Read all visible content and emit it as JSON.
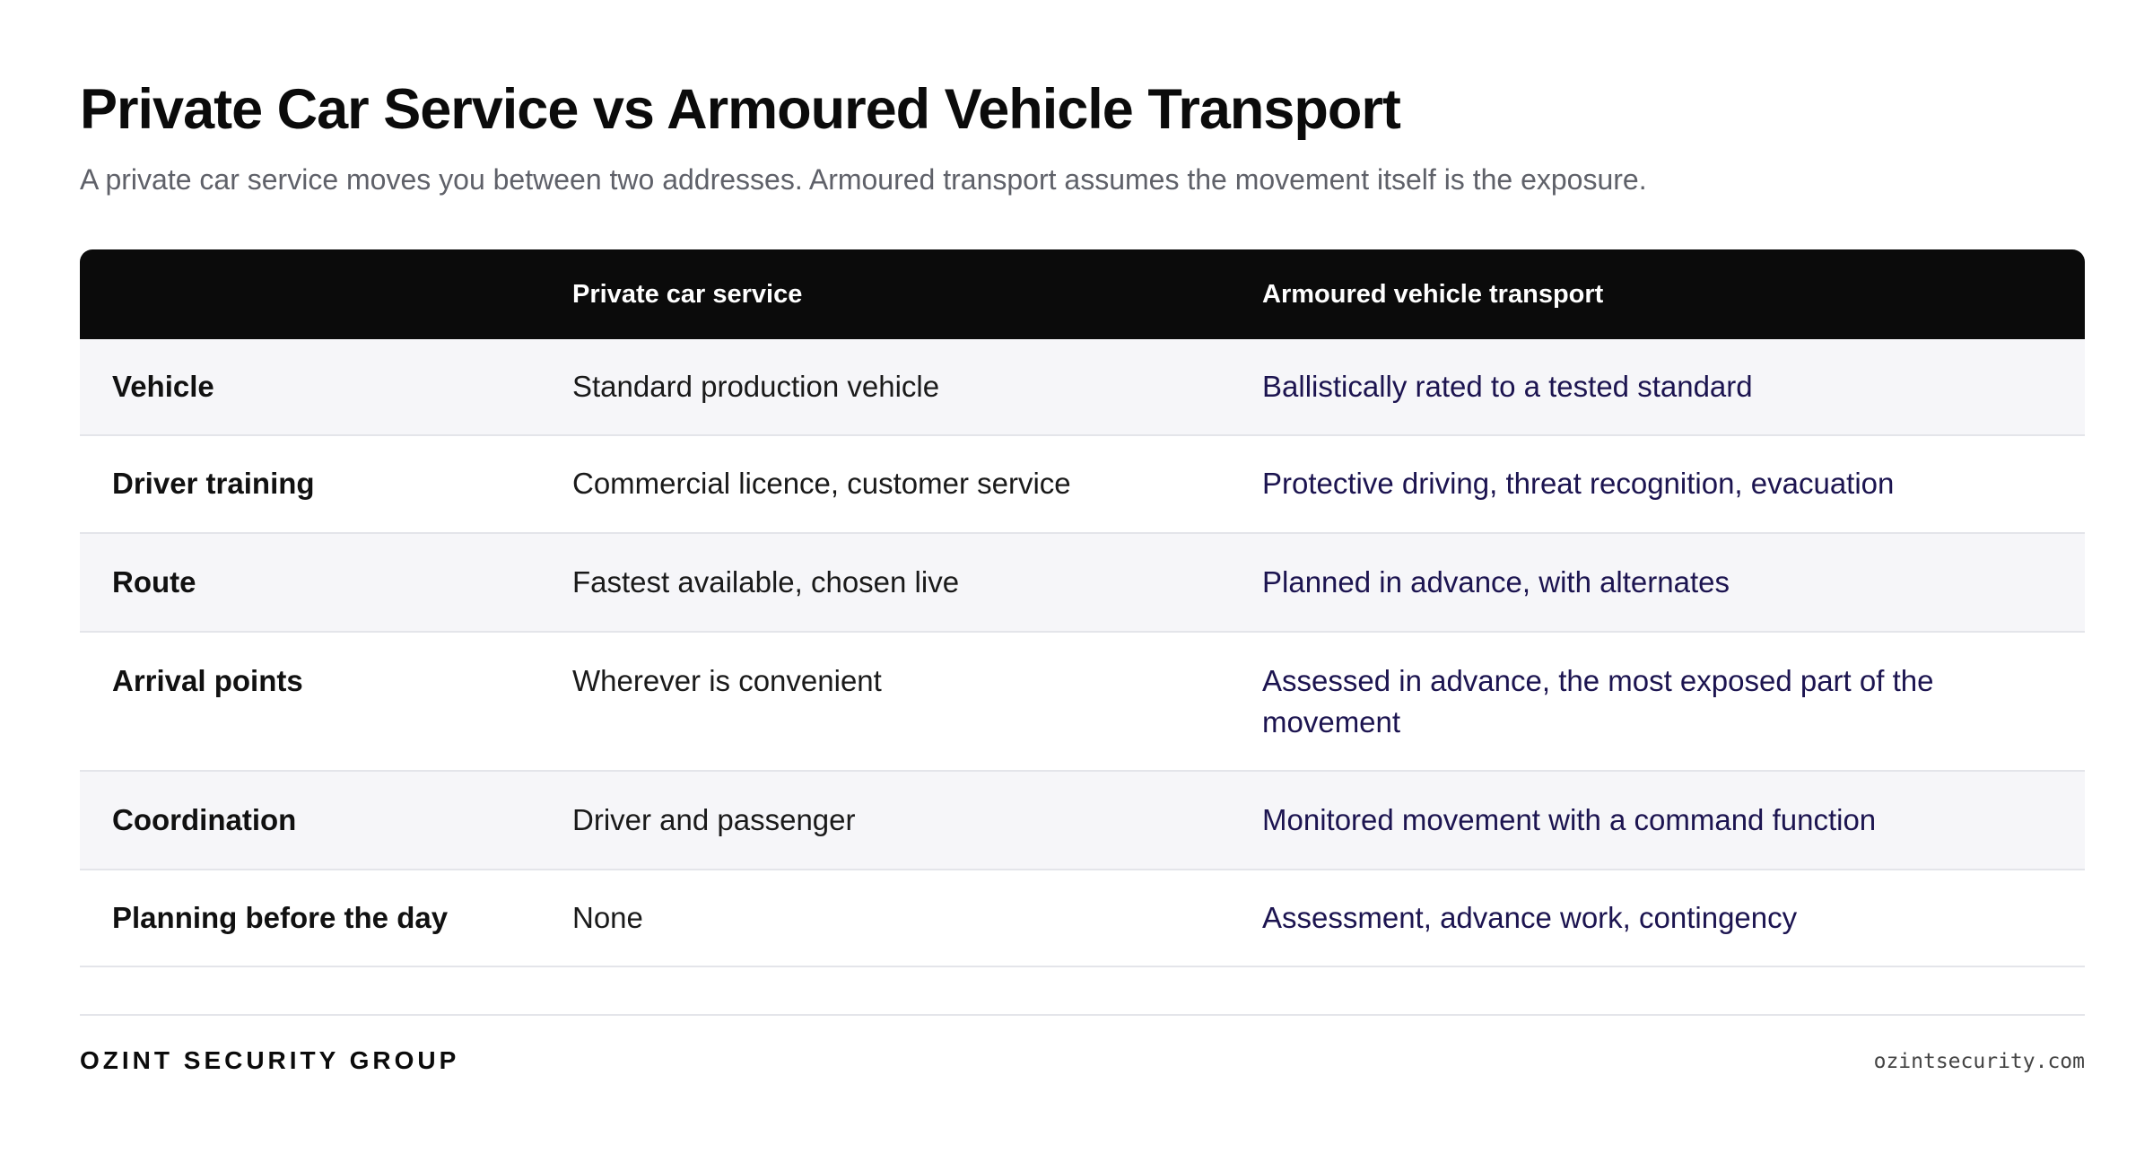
{
  "header": {
    "title": "Private Car Service vs Armoured Vehicle Transport",
    "subtitle": "A private car service moves you between two addresses. Armoured transport assumes the movement itself is the exposure."
  },
  "table": {
    "columns": [
      "",
      "Private car service",
      "Armoured vehicle transport"
    ],
    "rows": [
      {
        "label": "Vehicle",
        "private": "Standard production vehicle",
        "armoured": "Ballistically rated to a tested standard"
      },
      {
        "label": "Driver training",
        "private": "Commercial licence, customer service",
        "armoured": "Protective driving, threat recognition, evacuation"
      },
      {
        "label": "Route",
        "private": "Fastest available, chosen live",
        "armoured": "Planned in advance, with alternates"
      },
      {
        "label": "Arrival points",
        "private": "Wherever is convenient",
        "armoured": "Assessed in advance, the most exposed part of the movement"
      },
      {
        "label": "Coordination",
        "private": "Driver and passenger",
        "armoured": "Monitored movement with a command function"
      },
      {
        "label": "Planning before the day",
        "private": "None",
        "armoured": "Assessment, advance work, contingency"
      }
    ]
  },
  "footer": {
    "brand": "OZINT SECURITY GROUP",
    "site": "ozintsecurity.com"
  },
  "colors": {
    "header_bg": "#0b0b0b",
    "row_shade": "#f6f6f9",
    "accent_text": "#1c1450",
    "subtitle_text": "#5f6169"
  }
}
